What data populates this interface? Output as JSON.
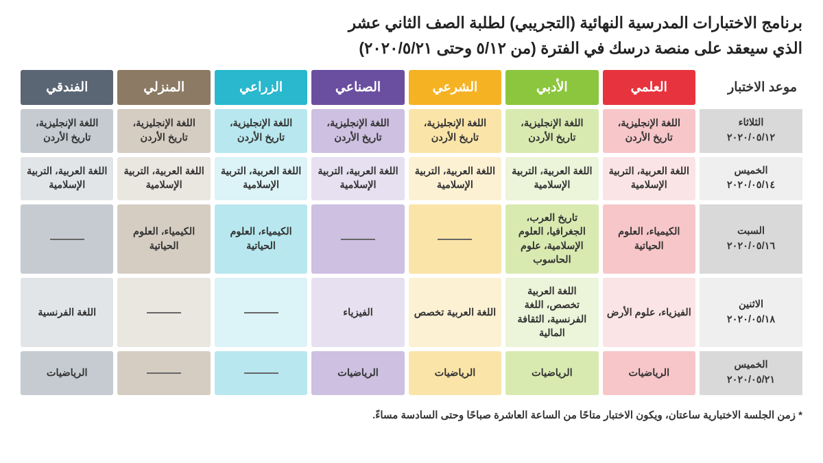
{
  "title_line1": "برنامج الاختبارات المدرسية النهائية (التجريبي) لطلبة الصف الثاني عشر",
  "title_line2": "الذي سيعقد على منصة درسك في الفترة (من ٥/١٢ وحتى ٢٠٢٠/٥/٢١)",
  "date_header": "موعد الاختبار",
  "footnote": "* زمن الجلسة الاختبارية ساعتان، ويكون الاختبار متاحًا من الساعة العاشرة صباحًا وحتى السادسة مساءً.",
  "table": {
    "columns": [
      {
        "key": "scientific",
        "label": "العلمي",
        "header_color": "#e7333d",
        "tint_odd": "#f7c6c9",
        "tint_even": "#fbe4e5"
      },
      {
        "key": "literary",
        "label": "الأدبي",
        "header_color": "#8cc63f",
        "tint_odd": "#d9eab1",
        "tint_even": "#ecf4d9"
      },
      {
        "key": "sharia",
        "label": "الشرعي",
        "header_color": "#f5b324",
        "tint_odd": "#fbe4a8",
        "tint_even": "#fdf1d4"
      },
      {
        "key": "industrial",
        "label": "الصناعي",
        "header_color": "#6a4ea0",
        "tint_odd": "#cdc0e0",
        "tint_even": "#e6e0f0"
      },
      {
        "key": "agricultural",
        "label": "الزراعي",
        "header_color": "#29b8ce",
        "tint_odd": "#b8e7ef",
        "tint_even": "#dcf3f7"
      },
      {
        "key": "home",
        "label": "المنزلي",
        "header_color": "#8c7a64",
        "tint_odd": "#d5cdc2",
        "tint_even": "#eae6e0"
      },
      {
        "key": "hotel",
        "label": "الفندقي",
        "header_color": "#5a6673",
        "tint_odd": "#c5cbd1",
        "tint_even": "#e2e5e8"
      }
    ],
    "date_col": {
      "tint_odd": "#d9d9d9",
      "tint_even": "#efefef"
    },
    "rows": [
      {
        "day": "الثلاثاء",
        "date": "٢٠٢٠/٠٥/١٢",
        "cells": {
          "scientific": "اللغة الإنجليزية، تاريخ الأردن",
          "literary": "اللغة الإنجليزية، تاريخ الأردن",
          "sharia": "اللغة الإنجليزية، تاريخ الأردن",
          "industrial": "اللغة الإنجليزية، تاريخ الأردن",
          "agricultural": "اللغة الإنجليزية، تاريخ الأردن",
          "home": "اللغة الإنجليزية، تاريخ الأردن",
          "hotel": "اللغة الإنجليزية، تاريخ الأردن"
        }
      },
      {
        "day": "الخميس",
        "date": "٢٠٢٠/٠٥/١٤",
        "cells": {
          "scientific": "اللغة العربية، التربية الإسلامية",
          "literary": "اللغة العربية، التربية الإسلامية",
          "sharia": "اللغة العربية، التربية الإسلامية",
          "industrial": "اللغة العربية، التربية الإسلامية",
          "agricultural": "اللغة العربية، التربية الإسلامية",
          "home": "اللغة العربية، التربية الإسلامية",
          "hotel": "اللغة العربية، التربية الإسلامية"
        }
      },
      {
        "day": "السبت",
        "date": "٢٠٢٠/٠٥/١٦",
        "cells": {
          "scientific": "الكيمياء، العلوم الحياتية",
          "literary": "تاريخ العرب، الجغرافيا، العلوم الإسلامية، علوم الحاسوب",
          "sharia": "",
          "industrial": "",
          "agricultural": "الكيمياء، العلوم الحياتية",
          "home": "الكيمياء، العلوم الحياتية",
          "hotel": ""
        }
      },
      {
        "day": "الاثنين",
        "date": "٢٠٢٠/٠٥/١٨",
        "cells": {
          "scientific": "الفيزياء، علوم الأرض",
          "literary": "اللغة العربية تخصص، اللغة الفرنسية، الثقافة المالية",
          "sharia": "اللغة العربية تخصص",
          "industrial": "الفيزياء",
          "agricultural": "",
          "home": "",
          "hotel": "اللغة الفرنسية"
        }
      },
      {
        "day": "الخميس",
        "date": "٢٠٢٠/٠٥/٢١",
        "cells": {
          "scientific": "الرياضيات",
          "literary": "الرياضيات",
          "sharia": "الرياضيات",
          "industrial": "الرياضيات",
          "agricultural": "",
          "home": "",
          "hotel": "الرياضيات"
        }
      }
    ]
  }
}
